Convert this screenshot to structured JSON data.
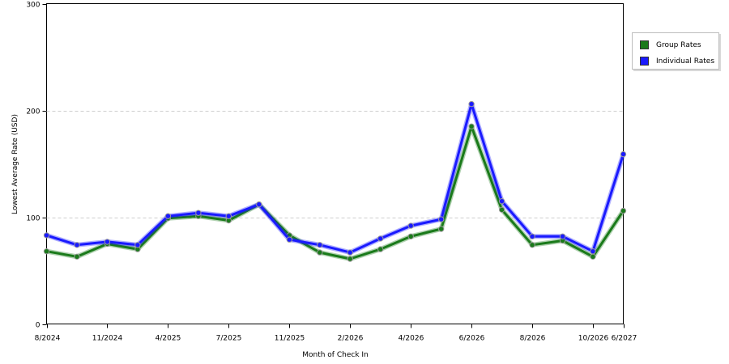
{
  "chart_data": {
    "type": "line",
    "xlabel": "Month of Check In",
    "ylabel": "Lowest Average Rate (USD)",
    "ylim": [
      0,
      300
    ],
    "yticks": [
      0,
      100,
      200,
      300
    ],
    "grid": "horizontal dashed",
    "legend_position": "right",
    "x_tick_labels": [
      "8/2024",
      "11/2024",
      "4/2025",
      "7/2025",
      "11/2025",
      "2/2026",
      "4/2026",
      "6/2026",
      "8/2026",
      "10/2026",
      "6/2027"
    ],
    "x_tick_index": [
      0,
      2,
      4,
      6,
      8,
      10,
      12,
      14,
      16,
      18,
      19
    ],
    "point_count": 20,
    "series": [
      {
        "name": "Group Rates",
        "color": "#1a7a1a",
        "values": [
          68,
          63,
          75,
          70,
          99,
          101,
          97,
          112,
          83,
          67,
          61,
          70,
          82,
          89,
          185,
          107,
          74,
          78,
          63,
          106
        ]
      },
      {
        "name": "Individual Rates",
        "color": "#1a1aff",
        "values": [
          83,
          74,
          77,
          74,
          101,
          104,
          101,
          112,
          79,
          74,
          67,
          80,
          92,
          98,
          206,
          115,
          82,
          82,
          68,
          159
        ]
      }
    ]
  }
}
